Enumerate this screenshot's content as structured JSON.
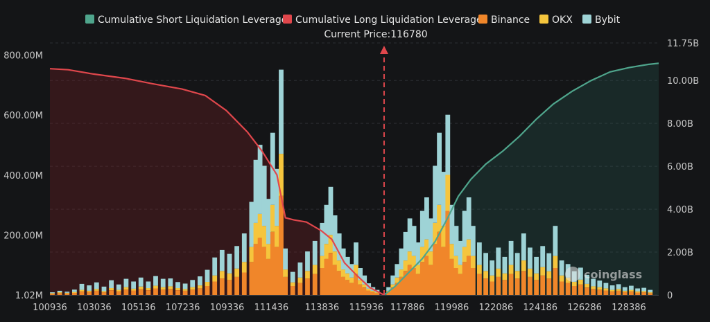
{
  "chart_data": {
    "type": "bar",
    "title": "",
    "current_price_label": "Current Price:116780",
    "current_price": 116780,
    "legend": [
      {
        "name": "Cumulative Short Liquidation Leverage",
        "color": "#4fa58c"
      },
      {
        "name": "Cumulative Long Liquidation Leverage",
        "color": "#e0474c"
      },
      {
        "name": "Binance",
        "color": "#f0862a"
      },
      {
        "name": "OKX",
        "color": "#f5c53d"
      },
      {
        "name": "Bybit",
        "color": "#9ed3d6"
      }
    ],
    "legend_position": "top",
    "watermark": "coinglass",
    "x_tick_labels": [
      "100936",
      "103036",
      "105136",
      "107236",
      "109336",
      "111436",
      "113836",
      "115936",
      "117886",
      "119986",
      "122086",
      "124186",
      "126286",
      "128386"
    ],
    "x_range": [
      100936,
      129800
    ],
    "y_left": {
      "tick_labels": [
        "1.02M",
        "200.00M",
        "400.00M",
        "600.00M",
        "800.00M"
      ],
      "ticks": [
        1.02,
        200,
        400,
        600,
        800
      ],
      "range": [
        1.02,
        840
      ],
      "unit": "M"
    },
    "y_right": {
      "tick_labels": [
        "0",
        "2.00B",
        "4.00B",
        "6.00B",
        "8.00B",
        "10.00B",
        "11.75B"
      ],
      "ticks": [
        0,
        2,
        4,
        6,
        8,
        10,
        11.75
      ],
      "range": [
        0,
        11.75
      ],
      "unit": "B"
    },
    "bars": {
      "bin_width": 140,
      "series": [
        "Binance",
        "OKX",
        "Bybit"
      ],
      "points": [
        {
          "x": 101050,
          "values": [
            4,
            2,
            3
          ]
        },
        {
          "x": 101400,
          "values": [
            6,
            3,
            5
          ]
        },
        {
          "x": 101750,
          "values": [
            5,
            2,
            4
          ]
        },
        {
          "x": 102100,
          "values": [
            7,
            3,
            8
          ]
        },
        {
          "x": 102450,
          "values": [
            12,
            5,
            20
          ]
        },
        {
          "x": 102800,
          "values": [
            10,
            4,
            18
          ]
        },
        {
          "x": 103150,
          "values": [
            14,
            6,
            22
          ]
        },
        {
          "x": 103500,
          "values": [
            9,
            4,
            15
          ]
        },
        {
          "x": 103850,
          "values": [
            16,
            7,
            26
          ]
        },
        {
          "x": 104200,
          "values": [
            12,
            5,
            18
          ]
        },
        {
          "x": 104550,
          "values": [
            18,
            8,
            28
          ]
        },
        {
          "x": 104900,
          "values": [
            15,
            6,
            24
          ]
        },
        {
          "x": 105250,
          "values": [
            20,
            8,
            30
          ]
        },
        {
          "x": 105600,
          "values": [
            16,
            7,
            22
          ]
        },
        {
          "x": 105950,
          "values": [
            22,
            9,
            32
          ]
        },
        {
          "x": 106300,
          "values": [
            18,
            8,
            28
          ]
        },
        {
          "x": 106650,
          "values": [
            20,
            9,
            26
          ]
        },
        {
          "x": 107000,
          "values": [
            16,
            7,
            20
          ]
        },
        {
          "x": 107350,
          "values": [
            14,
            6,
            18
          ]
        },
        {
          "x": 107700,
          "values": [
            18,
            8,
            24
          ]
        },
        {
          "x": 108050,
          "values": [
            22,
            10,
            30
          ]
        },
        {
          "x": 108400,
          "values": [
            30,
            14,
            40
          ]
        },
        {
          "x": 108750,
          "values": [
            45,
            20,
            60
          ]
        },
        {
          "x": 109100,
          "values": [
            55,
            25,
            70
          ]
        },
        {
          "x": 109450,
          "values": [
            50,
            22,
            65
          ]
        },
        {
          "x": 109800,
          "values": [
            60,
            28,
            75
          ]
        },
        {
          "x": 110150,
          "values": [
            75,
            35,
            95
          ]
        },
        {
          "x": 110500,
          "values": [
            110,
            50,
            150
          ]
        },
        {
          "x": 110700,
          "values": [
            170,
            70,
            210
          ]
        },
        {
          "x": 110900,
          "values": [
            190,
            80,
            230
          ]
        },
        {
          "x": 111100,
          "values": [
            160,
            70,
            200
          ]
        },
        {
          "x": 111300,
          "values": [
            120,
            50,
            150
          ]
        },
        {
          "x": 111500,
          "values": [
            210,
            90,
            240
          ]
        },
        {
          "x": 111700,
          "values": [
            160,
            70,
            190
          ]
        },
        {
          "x": 111900,
          "values": [
            330,
            140,
            280
          ]
        },
        {
          "x": 112100,
          "values": [
            60,
            25,
            70
          ]
        },
        {
          "x": 112450,
          "values": [
            30,
            12,
            35
          ]
        },
        {
          "x": 112800,
          "values": [
            40,
            18,
            50
          ]
        },
        {
          "x": 113150,
          "values": [
            55,
            25,
            65
          ]
        },
        {
          "x": 113500,
          "values": [
            70,
            30,
            80
          ]
        },
        {
          "x": 113850,
          "values": [
            90,
            40,
            110
          ]
        },
        {
          "x": 114050,
          "values": [
            120,
            50,
            130
          ]
        },
        {
          "x": 114250,
          "values": [
            140,
            60,
            160
          ]
        },
        {
          "x": 114450,
          "values": [
            100,
            45,
            120
          ]
        },
        {
          "x": 114650,
          "values": [
            80,
            35,
            90
          ]
        },
        {
          "x": 114850,
          "values": [
            60,
            25,
            70
          ]
        },
        {
          "x": 115050,
          "values": [
            50,
            22,
            55
          ]
        },
        {
          "x": 115250,
          "values": [
            40,
            18,
            45
          ]
        },
        {
          "x": 115450,
          "values": [
            70,
            30,
            75
          ]
        },
        {
          "x": 115650,
          "values": [
            35,
            15,
            40
          ]
        },
        {
          "x": 115850,
          "values": [
            25,
            10,
            30
          ]
        },
        {
          "x": 116050,
          "values": [
            15,
            6,
            18
          ]
        },
        {
          "x": 116250,
          "values": [
            10,
            4,
            12
          ]
        },
        {
          "x": 116450,
          "values": [
            6,
            3,
            8
          ]
        },
        {
          "x": 117000,
          "values": [
            10,
            4,
            12
          ]
        },
        {
          "x": 117200,
          "values": [
            25,
            10,
            30
          ]
        },
        {
          "x": 117400,
          "values": [
            40,
            18,
            45
          ]
        },
        {
          "x": 117600,
          "values": [
            60,
            25,
            70
          ]
        },
        {
          "x": 117800,
          "values": [
            80,
            35,
            95
          ]
        },
        {
          "x": 118000,
          "values": [
            100,
            45,
            110
          ]
        },
        {
          "x": 118200,
          "values": [
            90,
            40,
            100
          ]
        },
        {
          "x": 118400,
          "values": [
            70,
            30,
            75
          ]
        },
        {
          "x": 118600,
          "values": [
            110,
            50,
            120
          ]
        },
        {
          "x": 118800,
          "values": [
            130,
            55,
            140
          ]
        },
        {
          "x": 119000,
          "values": [
            100,
            45,
            110
          ]
        },
        {
          "x": 119200,
          "values": [
            170,
            70,
            190
          ]
        },
        {
          "x": 119400,
          "values": [
            210,
            90,
            240
          ]
        },
        {
          "x": 119600,
          "values": [
            160,
            70,
            180
          ]
        },
        {
          "x": 119800,
          "values": [
            280,
            120,
            200
          ]
        },
        {
          "x": 120000,
          "values": [
            120,
            50,
            130
          ]
        },
        {
          "x": 120200,
          "values": [
            90,
            40,
            100
          ]
        },
        {
          "x": 120400,
          "values": [
            70,
            30,
            80
          ]
        },
        {
          "x": 120600,
          "values": [
            110,
            50,
            120
          ]
        },
        {
          "x": 120800,
          "values": [
            130,
            55,
            140
          ]
        },
        {
          "x": 121000,
          "values": [
            90,
            40,
            100
          ]
        },
        {
          "x": 121300,
          "values": [
            70,
            30,
            75
          ]
        },
        {
          "x": 121600,
          "values": [
            55,
            25,
            60
          ]
        },
        {
          "x": 121900,
          "values": [
            45,
            20,
            50
          ]
        },
        {
          "x": 122200,
          "values": [
            60,
            28,
            70
          ]
        },
        {
          "x": 122500,
          "values": [
            50,
            22,
            55
          ]
        },
        {
          "x": 122800,
          "values": [
            70,
            30,
            80
          ]
        },
        {
          "x": 123100,
          "values": [
            55,
            25,
            60
          ]
        },
        {
          "x": 123400,
          "values": [
            80,
            35,
            90
          ]
        },
        {
          "x": 123700,
          "values": [
            60,
            28,
            70
          ]
        },
        {
          "x": 124000,
          "values": [
            50,
            22,
            55
          ]
        },
        {
          "x": 124300,
          "values": [
            65,
            28,
            70
          ]
        },
        {
          "x": 124600,
          "values": [
            55,
            24,
            60
          ]
        },
        {
          "x": 124900,
          "values": [
            90,
            40,
            100
          ]
        },
        {
          "x": 125200,
          "values": [
            45,
            20,
            50
          ]
        },
        {
          "x": 125500,
          "values": [
            40,
            18,
            45
          ]
        },
        {
          "x": 125800,
          "values": [
            30,
            14,
            35
          ]
        },
        {
          "x": 126100,
          "values": [
            35,
            16,
            40
          ]
        },
        {
          "x": 126400,
          "values": [
            25,
            12,
            30
          ]
        },
        {
          "x": 126700,
          "values": [
            20,
            9,
            25
          ]
        },
        {
          "x": 127000,
          "values": [
            18,
            8,
            22
          ]
        },
        {
          "x": 127300,
          "values": [
            15,
            7,
            18
          ]
        },
        {
          "x": 127600,
          "values": [
            12,
            5,
            15
          ]
        },
        {
          "x": 127900,
          "values": [
            14,
            6,
            16
          ]
        },
        {
          "x": 128200,
          "values": [
            10,
            4,
            12
          ]
        },
        {
          "x": 128500,
          "values": [
            12,
            5,
            14
          ]
        },
        {
          "x": 128800,
          "values": [
            8,
            4,
            10
          ]
        },
        {
          "x": 129100,
          "values": [
            9,
            4,
            11
          ]
        },
        {
          "x": 129400,
          "values": [
            6,
            3,
            8
          ]
        }
      ]
    },
    "cumulative_long": {
      "name": "Cumulative Long Liquidation Leverage",
      "axis": "right",
      "points": [
        {
          "x": 100936,
          "y": 10.55
        },
        {
          "x": 101800,
          "y": 10.5
        },
        {
          "x": 103000,
          "y": 10.3
        },
        {
          "x": 104500,
          "y": 10.1
        },
        {
          "x": 105800,
          "y": 9.85
        },
        {
          "x": 107200,
          "y": 9.6
        },
        {
          "x": 108300,
          "y": 9.3
        },
        {
          "x": 109300,
          "y": 8.6
        },
        {
          "x": 110300,
          "y": 7.6
        },
        {
          "x": 111000,
          "y": 6.7
        },
        {
          "x": 111700,
          "y": 5.6
        },
        {
          "x": 112100,
          "y": 3.6
        },
        {
          "x": 112500,
          "y": 3.5
        },
        {
          "x": 113100,
          "y": 3.4
        },
        {
          "x": 113800,
          "y": 3.0
        },
        {
          "x": 114300,
          "y": 2.6
        },
        {
          "x": 114900,
          "y": 1.5
        },
        {
          "x": 115500,
          "y": 0.9
        },
        {
          "x": 116100,
          "y": 0.35
        },
        {
          "x": 116780,
          "y": 0
        }
      ]
    },
    "cumulative_short": {
      "name": "Cumulative Short Liquidation Leverage",
      "axis": "right",
      "points": [
        {
          "x": 116780,
          "y": 0
        },
        {
          "x": 117300,
          "y": 0.4
        },
        {
          "x": 118000,
          "y": 1.1
        },
        {
          "x": 118600,
          "y": 1.7
        },
        {
          "x": 119200,
          "y": 2.5
        },
        {
          "x": 119800,
          "y": 3.6
        },
        {
          "x": 120300,
          "y": 4.6
        },
        {
          "x": 120900,
          "y": 5.4
        },
        {
          "x": 121600,
          "y": 6.1
        },
        {
          "x": 122400,
          "y": 6.7
        },
        {
          "x": 123200,
          "y": 7.4
        },
        {
          "x": 124000,
          "y": 8.2
        },
        {
          "x": 124800,
          "y": 8.9
        },
        {
          "x": 125700,
          "y": 9.5
        },
        {
          "x": 126600,
          "y": 10.0
        },
        {
          "x": 127500,
          "y": 10.4
        },
        {
          "x": 128400,
          "y": 10.6
        },
        {
          "x": 129300,
          "y": 10.75
        },
        {
          "x": 129800,
          "y": 10.8
        }
      ]
    }
  }
}
